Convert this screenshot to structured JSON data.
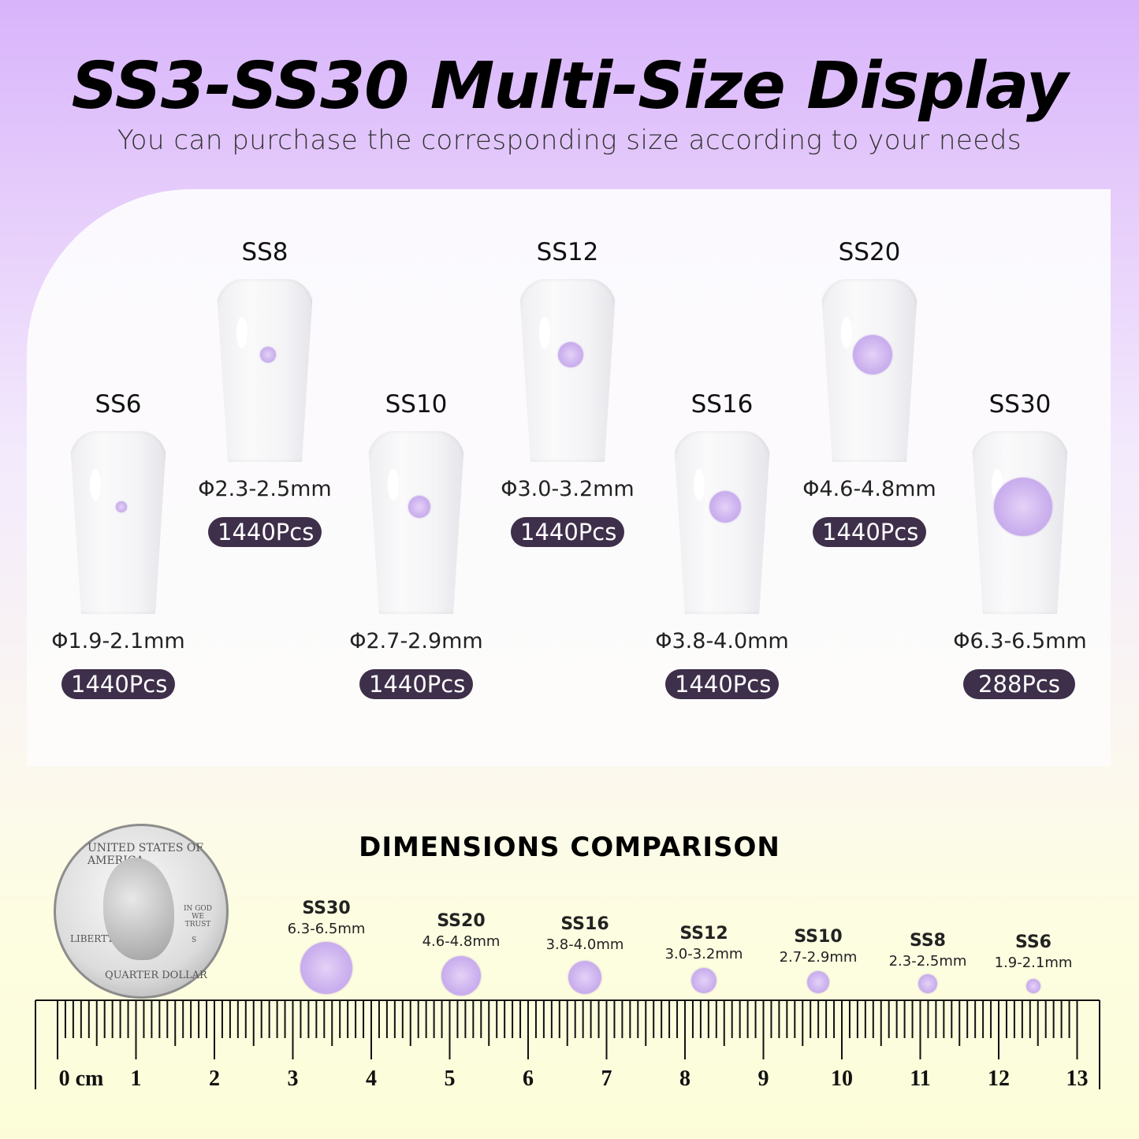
{
  "title": "SS3-SS30 Multi-Size Display",
  "subtitle": "You can purchase the corresponding size according to your needs",
  "items": [
    {
      "size": "SS6",
      "diameter": "Φ1.9-2.1mm",
      "pcs": "1440Pcs"
    },
    {
      "size": "SS8",
      "diameter": "Φ2.3-2.5mm",
      "pcs": "1440Pcs"
    },
    {
      "size": "SS10",
      "diameter": "Φ2.7-2.9mm",
      "pcs": "1440Pcs"
    },
    {
      "size": "SS12",
      "diameter": "Φ3.0-3.2mm",
      "pcs": "1440Pcs"
    },
    {
      "size": "SS16",
      "diameter": "Φ3.8-4.0mm",
      "pcs": "1440Pcs"
    },
    {
      "size": "SS20",
      "diameter": "Φ4.6-4.8mm",
      "pcs": "1440Pcs"
    },
    {
      "size": "SS30",
      "diameter": "Φ6.3-6.5mm",
      "pcs": "288Pcs"
    }
  ],
  "comparison": {
    "title": "DIMENSIONS COMPARISON",
    "items": [
      {
        "size": "SS30",
        "range": "6.3-6.5mm"
      },
      {
        "size": "SS20",
        "range": "4.6-4.8mm"
      },
      {
        "size": "SS16",
        "range": "3.8-4.0mm"
      },
      {
        "size": "SS12",
        "range": "3.0-3.2mm"
      },
      {
        "size": "SS10",
        "range": "2.7-2.9mm"
      },
      {
        "size": "SS8",
        "range": "2.3-2.5mm"
      },
      {
        "size": "SS6",
        "range": "1.9-2.1mm"
      }
    ],
    "ruler_labels": [
      "0 cm",
      "1",
      "2",
      "3",
      "4",
      "5",
      "6",
      "7",
      "8",
      "9",
      "10",
      "11",
      "12",
      "13"
    ],
    "coin_text": {
      "top": "UNITED STATES OF AMERICA",
      "motto": "IN GOD WE TRUST",
      "liberty": "LIBERTY",
      "bottom": "QUARTER DOLLAR",
      "mint": "S"
    }
  },
  "colors": {
    "pill": "#3e2f4a",
    "gem": "#cbb0ee",
    "accent": "#d8b4fb"
  }
}
